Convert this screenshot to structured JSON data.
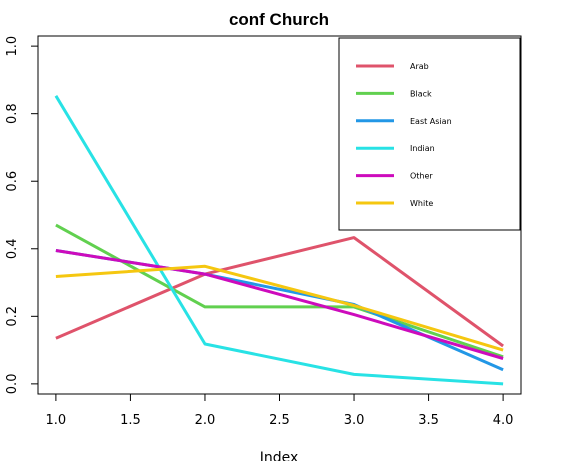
{
  "chart_data": {
    "type": "line",
    "title": "conf Church",
    "xlabel": "Index",
    "ylabel": "",
    "x": [
      1,
      2,
      3,
      4
    ],
    "xlim": [
      0.88,
      4.12
    ],
    "ylim": [
      -0.03,
      1.03
    ],
    "x_ticks": [
      "1.0",
      "1.5",
      "2.0",
      "2.5",
      "3.0",
      "3.5",
      "4.0"
    ],
    "y_ticks": [
      "0.0",
      "0.2",
      "0.4",
      "0.6",
      "0.8",
      "1.0"
    ],
    "grid": false,
    "legend_position": "top-right",
    "series": [
      {
        "name": "Arab",
        "color": "#DF536B",
        "values": [
          0.135,
          0.325,
          0.433,
          0.112
        ]
      },
      {
        "name": "Black",
        "color": "#61D04F",
        "values": [
          0.47,
          0.228,
          0.228,
          0.08
        ]
      },
      {
        "name": "East Asian",
        "color": "#2297E6",
        "values": [
          0.395,
          0.325,
          0.235,
          0.042
        ]
      },
      {
        "name": "Indian",
        "color": "#28E2E5",
        "values": [
          0.853,
          0.118,
          0.028,
          0.0
        ]
      },
      {
        "name": "Other",
        "color": "#CD0BBC",
        "values": [
          0.395,
          0.325,
          0.205,
          0.075
        ]
      },
      {
        "name": "White",
        "color": "#F5C710",
        "values": [
          0.318,
          0.348,
          0.232,
          0.1
        ]
      }
    ]
  }
}
